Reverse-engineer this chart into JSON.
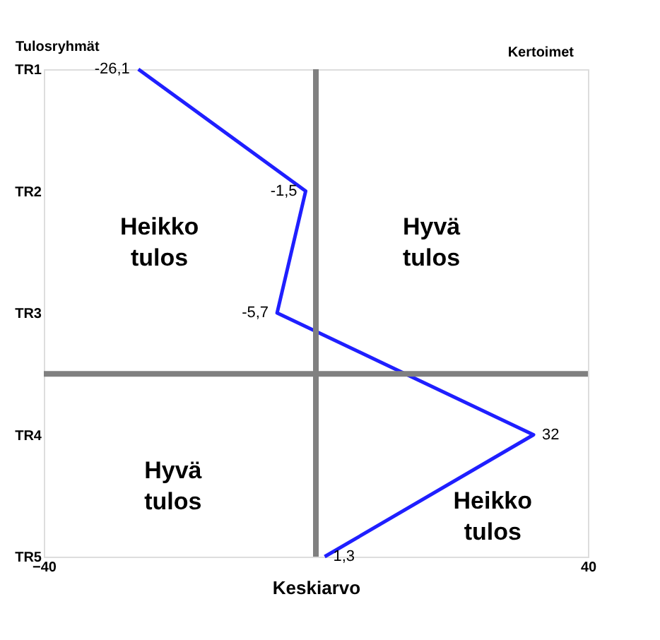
{
  "chart_data": {
    "type": "line",
    "orientation": "horizontal",
    "categories": [
      "TR1",
      "TR2",
      "TR3",
      "TR4",
      "TR5"
    ],
    "values": [
      -26.1,
      -1.5,
      -5.7,
      32,
      1.3
    ],
    "value_labels": [
      "-26,1",
      "-1,5",
      "-5,7",
      "32",
      "1,3"
    ],
    "color": "#1f1fff",
    "xlim": [
      -40,
      40
    ],
    "xticks": [
      -40,
      40
    ],
    "xlabel": "Keskiarvo",
    "ylabel": "Tulosryhmät",
    "annotations": [
      "Heikko tulos",
      "Hyvä tulos",
      "Hyvä tulos",
      "Heikko tulos",
      "Kertoimet"
    ],
    "ref_lines": [
      {
        "axis": "x",
        "value": 0,
        "color": "#808080"
      }
    ],
    "marker": "none",
    "line_style": "solid"
  }
}
